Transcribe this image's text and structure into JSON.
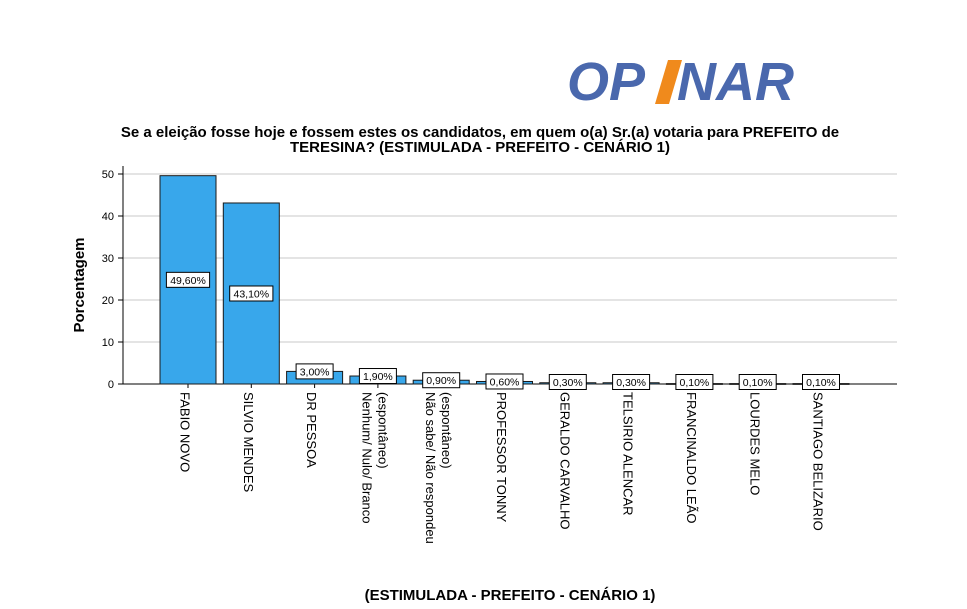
{
  "logo": {
    "text_part1": "OP",
    "text_part2": "NAR"
  },
  "chart_data": {
    "type": "bar",
    "title_line1": "Se a eleição fosse hoje e fossem estes os candidatos, em quem o(a) Sr.(a) votaria para PREFEITO de",
    "title_line2": "TERESINA? (ESTIMULADA - PREFEITO - CENÁRIO 1)",
    "xlabel": "(ESTIMULADA - PREFEITO - CENÁRIO 1)",
    "ylabel": "Porcentagem",
    "ylim": [
      0,
      50
    ],
    "yticks": [
      0,
      10,
      20,
      30,
      40,
      50
    ],
    "grid": true,
    "bar_color": "#38a7eb",
    "categories": [
      [
        "FABIO NOVO"
      ],
      [
        "SILVIO MENDES"
      ],
      [
        "DR PESSOA"
      ],
      [
        "Nenhum/ Nulo/ Branco",
        "(espontâneo)"
      ],
      [
        "Não sabe/ Não respondeu",
        "(espontâneo)"
      ],
      [
        "PROFESSOR TONNY"
      ],
      [
        "GERALDO CARVALHO"
      ],
      [
        "TELSIRIO ALENCAR"
      ],
      [
        "FRANCINALDO LEÃO"
      ],
      [
        "LOURDES MELO"
      ],
      [
        "SANTIAGO BELIZARIO"
      ]
    ],
    "values": [
      49.6,
      43.1,
      3.0,
      1.9,
      0.9,
      0.6,
      0.3,
      0.3,
      0.1,
      0.1,
      0.1
    ],
    "value_labels": [
      "49,60%",
      "43,10%",
      "3,00%",
      "1,90%",
      "0,90%",
      "0,60%",
      "0,30%",
      "0,30%",
      "0,10%",
      "0,10%",
      "0,10%"
    ]
  }
}
